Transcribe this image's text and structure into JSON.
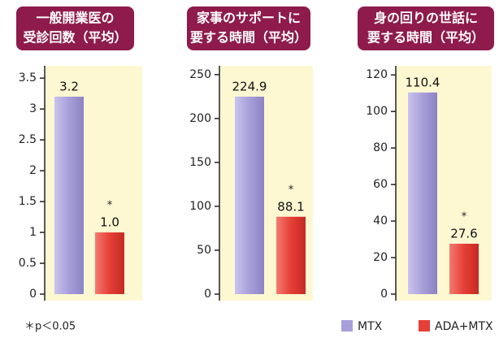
{
  "chart_data": [
    {
      "type": "bar",
      "title": [
        "一般開業医の",
        "受診回数（平均）"
      ],
      "values": [
        3.2,
        1.0
      ],
      "value_labels": [
        "3.2",
        "1.0"
      ],
      "annotation": "*",
      "ylim": [
        0,
        3.7
      ],
      "yticks": [
        0,
        0.5,
        1,
        1.5,
        2,
        2.5,
        3,
        3.5
      ]
    },
    {
      "type": "bar",
      "title": [
        "家事のサポートに",
        "要する時間（平均）"
      ],
      "values": [
        224.9,
        88.1
      ],
      "annotation": "*",
      "ylim": [
        0,
        260
      ],
      "yticks": [
        0,
        50,
        100,
        150,
        200,
        250
      ]
    },
    {
      "type": "bar",
      "title": [
        "身の回りの世話に",
        "要する時間（平均）"
      ],
      "values": [
        110.4,
        27.6
      ],
      "annotation": "*",
      "ylim": [
        0,
        125
      ],
      "yticks": [
        0,
        20,
        40,
        60,
        80,
        100,
        120
      ]
    }
  ],
  "legend": {
    "position": "bottom-right",
    "items": [
      {
        "name": "MTX",
        "color": "#a79fd9"
      },
      {
        "name": "ADA+MTX",
        "color": "#e63f37"
      }
    ]
  },
  "footnote": "＊p＜0.05"
}
